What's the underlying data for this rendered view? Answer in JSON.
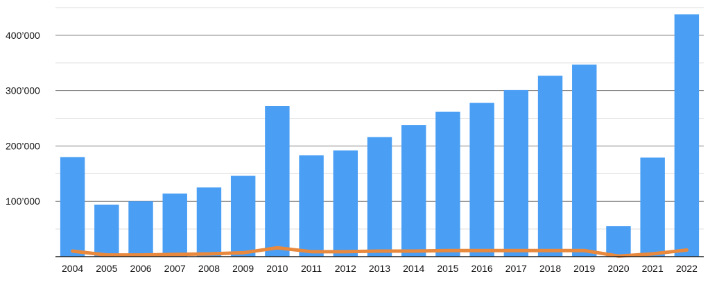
{
  "chart_data": {
    "type": "bar",
    "categories": [
      "2004",
      "2005",
      "2006",
      "2007",
      "2008",
      "2009",
      "2010",
      "2011",
      "2012",
      "2013",
      "2014",
      "2015",
      "2016",
      "2017",
      "2018",
      "2019",
      "2020",
      "2021",
      "2022"
    ],
    "series": [
      {
        "type": "bar",
        "color": "#4a9ff5",
        "values": [
          180000,
          94000,
          100000,
          114000,
          125000,
          146000,
          272000,
          183000,
          192000,
          216000,
          238000,
          262000,
          278000,
          301000,
          327000,
          347000,
          55000,
          179000,
          438000
        ]
      },
      {
        "type": "line",
        "color": "#e8893e",
        "values": [
          10000,
          3000,
          3000,
          4000,
          5000,
          7000,
          16000,
          9000,
          9000,
          10000,
          10000,
          11000,
          11000,
          11000,
          11000,
          11000,
          1000,
          5000,
          12000
        ]
      }
    ],
    "y_ticks": [
      {
        "value": 100000,
        "label": "100’000"
      },
      {
        "value": 200000,
        "label": "200’000"
      },
      {
        "value": 300000,
        "label": "300’000"
      },
      {
        "value": 400000,
        "label": "400’000"
      }
    ],
    "ylim": [
      0,
      450000
    ],
    "grid": true,
    "title": "",
    "xlabel": "",
    "ylabel": ""
  }
}
